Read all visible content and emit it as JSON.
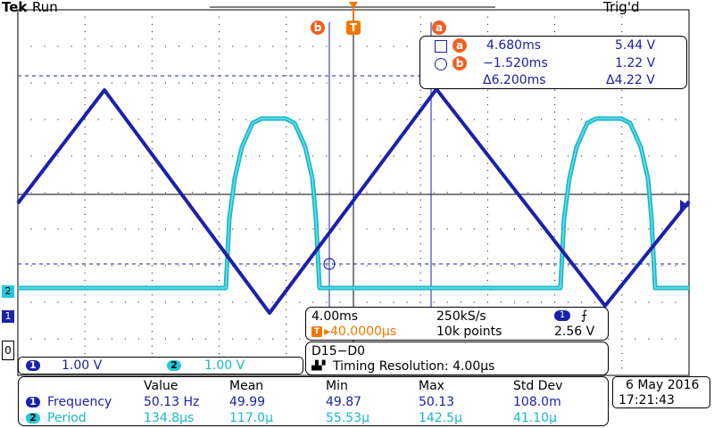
{
  "header": {
    "brand": "Tek",
    "run_state": "Run",
    "trigger_state": "Trig'd"
  },
  "cursor_labels": {
    "a": "a",
    "b": "b",
    "trigger_marker": "T"
  },
  "cursor_readout": {
    "a": {
      "time": "4.680ms",
      "volts": "5.44 V"
    },
    "b": {
      "time": "−1.520ms",
      "volts": "1.22 V"
    },
    "delta": {
      "time": "Δ6.200ms",
      "volts": "Δ4.22 V"
    }
  },
  "horizontal": {
    "timebase": "4.00ms",
    "sample_rate": "250kS/s",
    "trigger_position": "▸40.0000μs",
    "record_length": "10k points"
  },
  "trigger": {
    "channel": "1",
    "slope_symbol": "⨍",
    "level": "2.56 V"
  },
  "digital": {
    "channels": "D15−D0",
    "timing_label": "Timing Resolution: 4.00μs"
  },
  "channel_scales": {
    "ch1": {
      "number": "1",
      "scale": "1.00 V"
    },
    "ch2": {
      "number": "2",
      "scale": "1.00 V"
    }
  },
  "measurements": {
    "headers": [
      "Value",
      "Mean",
      "Min",
      "Max",
      "Std Dev"
    ],
    "rows": [
      {
        "ch": "1",
        "name": "Frequency",
        "values": [
          "50.13 Hz",
          "49.99",
          "49.87",
          "50.13",
          "108.0m"
        ]
      },
      {
        "ch": "2",
        "name": "Period",
        "values": [
          "134.8μs",
          "117.0μ",
          "55.53μ",
          "142.5μ",
          "41.10μ"
        ]
      }
    ]
  },
  "datetime": {
    "date": "6 May 2016",
    "time": "17:21:43"
  },
  "markers": {
    "ch1": "1",
    "ch2": "2",
    "digital": "0"
  },
  "colors": {
    "ch1": "#1a22a8",
    "ch2": "#18b8c8",
    "orange": "#f07800",
    "grid": "#000000"
  }
}
